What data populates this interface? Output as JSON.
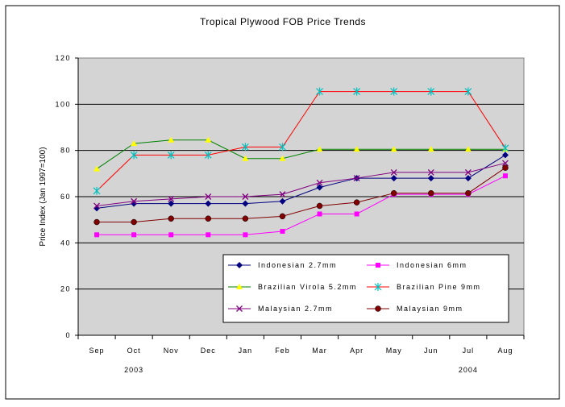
{
  "chart_data": {
    "type": "line",
    "title": "Tropical Plywood FOB Price Trends",
    "xlabel": "",
    "ylabel": "Price Index (Jan 1997=100)",
    "ylim": [
      0,
      120
    ],
    "yticks": [
      0,
      20,
      40,
      60,
      80,
      100,
      120
    ],
    "categories": [
      "Sep",
      "Oct",
      "Nov",
      "Dec",
      "Jan",
      "Feb",
      "Mar",
      "Apr",
      "May",
      "Jun",
      "Jul",
      "Aug"
    ],
    "year_labels": [
      {
        "text": "2003",
        "category_index": 1
      },
      {
        "text": "2004",
        "category_index": 10
      }
    ],
    "grid": "horizontal",
    "legend_position": "bottom-center inside plot",
    "plot_background": "#d4d4d4",
    "series": [
      {
        "name": "Indonesian 2.7mm",
        "color": "#000080",
        "marker": "diamond",
        "values": [
          55,
          57,
          57,
          57,
          57,
          58,
          64,
          68,
          68,
          68,
          68,
          78
        ]
      },
      {
        "name": "Indonesian 6mm",
        "color": "#ff00ff",
        "marker": "square",
        "values": [
          43.5,
          43.5,
          43.5,
          43.5,
          43.5,
          45,
          52.5,
          52.5,
          61,
          61,
          61,
          69
        ]
      },
      {
        "name": "Brazilian Virola 5.2mm",
        "color": "#008000",
        "marker": "triangle",
        "marker_color": "#ffff00",
        "values": [
          72,
          83,
          84.5,
          84.5,
          76.5,
          76.5,
          80.5,
          80.5,
          80.5,
          80.5,
          80.5,
          80.5
        ]
      },
      {
        "name": "Brazilian Pine 9mm",
        "color": "#ff0000",
        "marker": "star",
        "marker_color": "#00c0c0",
        "values": [
          62.5,
          78,
          78,
          78,
          81.5,
          81.5,
          105.5,
          105.5,
          105.5,
          105.5,
          105.5,
          81
        ]
      },
      {
        "name": "Malaysian 2.7mm",
        "color": "#800080",
        "marker": "x",
        "values": [
          56,
          58,
          59,
          60,
          60,
          61,
          66,
          68,
          70.5,
          70.5,
          70.5,
          74.5
        ]
      },
      {
        "name": "Malaysian 9mm",
        "color": "#800000",
        "marker": "circle",
        "values": [
          49,
          49,
          50.5,
          50.5,
          50.5,
          51.5,
          56,
          57.5,
          61.5,
          61.5,
          61.5,
          72.5
        ]
      }
    ]
  }
}
